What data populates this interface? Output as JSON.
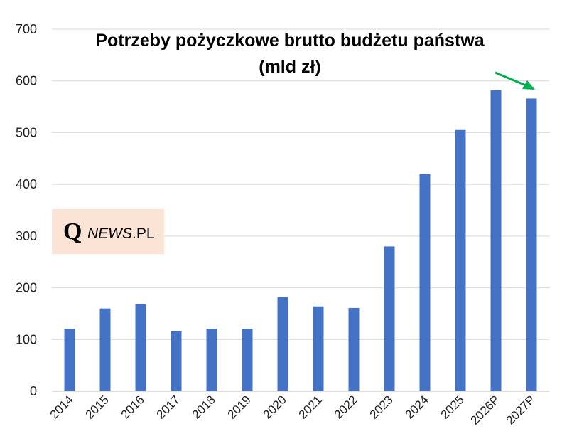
{
  "chart_data": {
    "type": "bar",
    "title_lines": [
      "Potrzeby pożyczkowe brutto budżetu państwa",
      "(mld zł)"
    ],
    "categories": [
      "2014",
      "2015",
      "2016",
      "2017",
      "2018",
      "2019",
      "2020",
      "2021",
      "2022",
      "2023",
      "2024",
      "2025",
      "2026P",
      "2027P"
    ],
    "values": [
      121,
      160,
      168,
      116,
      121,
      121,
      182,
      164,
      161,
      280,
      420,
      505,
      582,
      566
    ],
    "ylim": [
      0,
      700
    ],
    "yticks": [
      0,
      100,
      200,
      300,
      400,
      500,
      600,
      700
    ],
    "xlabel": "",
    "ylabel": "",
    "grid": true,
    "bar_color": "#4472c4",
    "gridline_color": "#d9d9d9",
    "arrow_color": "#00b050",
    "annotation": "green arrow pointing down from 2026P to 2027P"
  },
  "watermark": {
    "q": "Q",
    "italic": "NEWS",
    "suffix": ".PL",
    "background": "#fbe4d5"
  }
}
